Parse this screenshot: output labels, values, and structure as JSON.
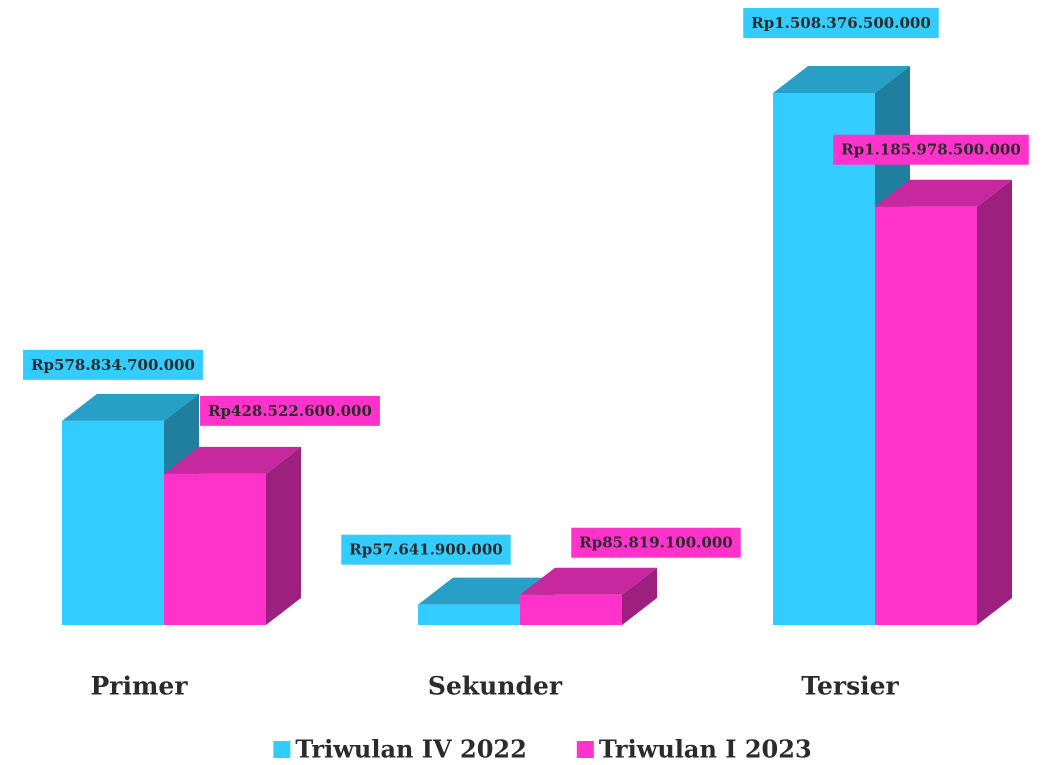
{
  "chart_data": {
    "type": "bar3d",
    "categories": [
      "Primer",
      "Sekunder",
      "Tersier"
    ],
    "series": [
      {
        "name": "Triwulan IV 2022",
        "color": "#33ccff",
        "values": [
          578834700000,
          57641900000,
          1508376500000
        ],
        "value_labels": [
          "Rp578.834.700.000",
          "Rp57.641.900.000",
          "Rp1.508.376.500.000"
        ]
      },
      {
        "name": "Triwulan I 2023",
        "color": "#ff33cc",
        "values": [
          428522600000,
          85819100000,
          1185978500000
        ],
        "value_labels": [
          "Rp428.522.600.000",
          "Rp85.819.100.000",
          "Rp1.185.978.500.000"
        ]
      }
    ]
  }
}
